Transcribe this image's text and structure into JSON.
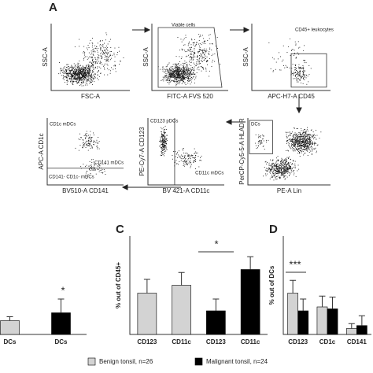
{
  "panel_labels": [
    "A",
    "C",
    "D"
  ],
  "flow_plots": [
    {
      "y_label": "SSC-A",
      "x_label": "FSC-A",
      "gates": []
    },
    {
      "y_label": "SSC-A",
      "x_label": "FITC-A FVS 520",
      "gates": [
        "Viable cells"
      ]
    },
    {
      "y_label": "SSC-A",
      "x_label": "APC-H7-A CD45",
      "gates": [
        "CD45+ leukocytes"
      ]
    },
    {
      "y_label": "APC-A CD1c",
      "x_label": "BV510-A CD141",
      "gates": [
        "CD1c mDCs",
        "CD141 mDCs",
        "CD141- CD1c- mDCs"
      ]
    },
    {
      "y_label": "PE-Cy7-A CD123",
      "x_label": "BV 421-A CD11c",
      "gates": [
        "CD123 pDCs",
        "CD11c mDCs"
      ]
    },
    {
      "y_label": "PerCP-Cy5-5-A HLADR",
      "x_label": "PE-A Lin",
      "gates": [
        "DCs"
      ]
    }
  ],
  "chart_data": [
    {
      "type": "bar",
      "categories": [
        "DCs",
        "DCs"
      ],
      "ylim": [
        0,
        100
      ],
      "series": [
        {
          "name": "Benign tonsil, n=26",
          "color": "#d3d3d3",
          "values": [
            14,
            null
          ],
          "errors": [
            4,
            null
          ]
        },
        {
          "name": "Malignant tonsil, n=24",
          "color": "#000000",
          "values": [
            null,
            22
          ],
          "errors": [
            null,
            14
          ]
        }
      ],
      "annotations": [
        "*"
      ]
    },
    {
      "type": "bar",
      "y_label": "% out of CD45+",
      "categories": [
        "CD123",
        "CD11c",
        "CD123",
        "CD11c"
      ],
      "ylim": [
        0,
        100
      ],
      "series": [
        {
          "name": "Benign tonsil, n=26",
          "color": "#d3d3d3",
          "values": [
            42,
            50,
            null,
            null
          ],
          "errors": [
            14,
            13,
            null,
            null
          ]
        },
        {
          "name": "Malignant tonsil, n=24",
          "color": "#000000",
          "values": [
            null,
            null,
            24,
            66
          ],
          "errors": [
            null,
            null,
            12,
            13
          ]
        }
      ],
      "annotations": [
        "*"
      ]
    },
    {
      "type": "bar",
      "y_label": "% out of DCs",
      "categories": [
        "CD123",
        "CD1c",
        "CD141"
      ],
      "ylim": [
        0,
        100
      ],
      "series": [
        {
          "name": "Benign tonsil, n=26",
          "color": "#d3d3d3",
          "values": [
            42,
            28,
            6
          ],
          "errors": [
            13,
            11,
            5
          ]
        },
        {
          "name": "Malignant tonsil, n=24",
          "color": "#000000",
          "values": [
            24,
            26,
            9
          ],
          "errors": [
            12,
            12,
            10
          ]
        }
      ],
      "annotations": [
        "***"
      ]
    }
  ]
}
